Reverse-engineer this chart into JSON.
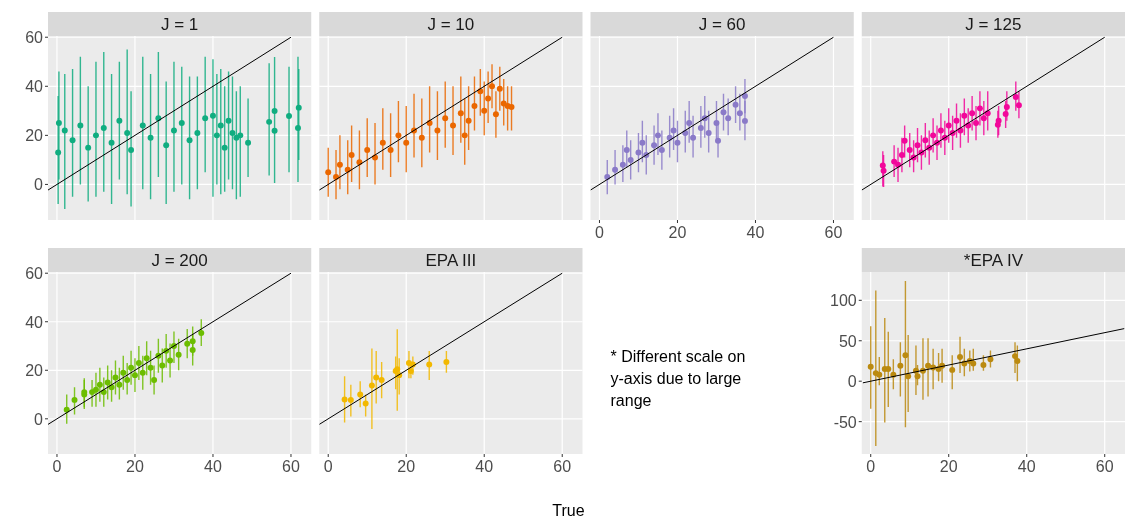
{
  "chart_data": [
    {
      "type": "scatter",
      "title": "J = 1",
      "xlim": [
        -2.3,
        65.2
      ],
      "ylim": [
        -14.5,
        60.5
      ],
      "xticks": [
        0,
        20,
        40,
        60
      ],
      "yticks": [
        0,
        20,
        40,
        60
      ],
      "grid": true,
      "tick_labels": "y",
      "series": [
        {
          "type": "scatter",
          "marker": "circle",
          "color": "#10ad80",
          "x": [
            0.3,
            0.5,
            2,
            4,
            6,
            8,
            10,
            12,
            14,
            16,
            18,
            19,
            22,
            24,
            26,
            28,
            30,
            32,
            34,
            36,
            38,
            40,
            41,
            42,
            43,
            44,
            45,
            46,
            47,
            49,
            54.4,
            55.8,
            55.8,
            59.5,
            62,
            61.8
          ],
          "values": [
            13,
            25,
            22,
            18,
            24,
            15,
            20,
            23,
            17,
            26,
            21,
            14,
            24,
            19,
            27,
            16,
            22,
            25,
            18,
            21,
            27,
            28,
            20,
            24,
            15,
            26,
            21,
            19,
            20,
            17,
            25.5,
            29.9,
            21.9,
            27.9,
            31.3,
            23
          ],
          "errors": [
            [
              -8,
              36
            ],
            [
              2,
              46
            ],
            [
              -10,
              45
            ],
            [
              -5,
              47
            ],
            [
              0,
              52
            ],
            [
              -7,
              40
            ],
            [
              -5,
              50
            ],
            [
              -3,
              54
            ],
            [
              -8,
              45
            ],
            [
              2,
              50
            ],
            [
              -4,
              55
            ],
            [
              -9,
              38
            ],
            [
              -2,
              52
            ],
            [
              -6,
              45
            ],
            [
              3,
              54
            ],
            [
              -8,
              42
            ],
            [
              -3,
              50
            ],
            [
              0,
              48
            ],
            [
              -6,
              44
            ],
            [
              -2,
              44
            ],
            [
              5,
              52
            ],
            [
              -5,
              51
            ],
            [
              0,
              45
            ],
            [
              -4,
              47
            ],
            [
              -3,
              40
            ],
            [
              2,
              46
            ],
            [
              -2,
              44
            ],
            [
              -6,
              38
            ],
            [
              -5,
              40
            ],
            [
              3,
              35
            ],
            [
              3.6,
              49.4
            ],
            [
              0.6,
              51.9
            ],
            null,
            [
              5,
              48
            ],
            [
              10,
              47
            ],
            [
              1,
              52
            ]
          ]
        },
        {
          "type": "line",
          "color": "#000000",
          "x": [
            -2.3,
            60
          ],
          "values": [
            -2.3,
            60
          ]
        }
      ]
    },
    {
      "type": "scatter",
      "title": "J = 10",
      "xlim": [
        -2.3,
        65.2
      ],
      "ylim": [
        -14.5,
        60.5
      ],
      "xticks": [
        0,
        20,
        40,
        60
      ],
      "yticks": [
        0,
        20,
        40,
        60
      ],
      "grid": true,
      "tick_labels": false,
      "series": [
        {
          "type": "scatter",
          "marker": "circle",
          "color": "#ea6700",
          "x": [
            0,
            2,
            3,
            5,
            6,
            8,
            10,
            12,
            14,
            16,
            18,
            20,
            22,
            24,
            26,
            28,
            30,
            32,
            34,
            35,
            36,
            37.5,
            39,
            40,
            41,
            42,
            43,
            44,
            45,
            46,
            47
          ],
          "values": [
            5,
            3,
            8,
            6,
            12,
            9,
            14,
            11,
            17,
            14,
            20,
            17,
            22,
            19,
            25,
            22,
            27,
            24,
            29,
            20,
            26,
            32,
            38,
            30,
            35,
            40,
            28.6,
            39,
            33,
            32,
            31.6
          ],
          "errors": [
            [
              -5,
              15
            ],
            [
              -6,
              14
            ],
            [
              -2,
              20
            ],
            [
              -4,
              18
            ],
            [
              1,
              24
            ],
            [
              -2,
              22
            ],
            [
              3,
              27
            ],
            [
              0,
              25
            ],
            [
              6,
              31
            ],
            [
              3,
              29
            ],
            [
              9,
              34
            ],
            [
              5,
              32
            ],
            [
              11,
              37
            ],
            [
              7,
              35
            ],
            [
              13,
              40
            ],
            [
              10,
              38
            ],
            [
              15,
              42
            ],
            [
              12,
              40
            ],
            [
              17,
              44
            ],
            [
              8,
              35
            ],
            [
              14,
              40
            ],
            [
              22,
              44
            ],
            [
              28,
              47
            ],
            [
              20,
              42
            ],
            [
              25,
              46
            ],
            [
              31,
              49
            ],
            [
              19,
              38
            ],
            [
              30,
              48
            ],
            [
              24,
              43
            ],
            [
              22,
              40
            ],
            [
              22,
              40
            ]
          ]
        },
        {
          "type": "line",
          "color": "#000000",
          "x": [
            -2.3,
            60
          ],
          "values": [
            -2.3,
            60
          ]
        }
      ]
    },
    {
      "type": "scatter",
      "title": "J = 60",
      "xlim": [
        -2.3,
        65.2
      ],
      "ylim": [
        -14.5,
        60.5
      ],
      "xticks": [
        0,
        20,
        40,
        60
      ],
      "yticks": [
        0,
        20,
        40,
        60
      ],
      "grid": true,
      "tick_labels": "x",
      "series": [
        {
          "type": "scatter",
          "marker": "circle",
          "color": "#8a7ac8",
          "x": [
            2,
            4,
            6,
            7,
            8,
            10,
            11,
            12,
            14,
            15,
            16,
            18,
            19,
            20,
            22,
            23,
            24,
            26,
            27,
            28,
            30,
            30.4,
            31.8,
            33,
            34.9,
            36,
            37.3,
            37.3
          ],
          "values": [
            3,
            6,
            8,
            14,
            10,
            13,
            17,
            12,
            16,
            20,
            14,
            19,
            22,
            17,
            21,
            25,
            19,
            23,
            27,
            21,
            25,
            17.8,
            29.4,
            27,
            32.5,
            29,
            36,
            25.9
          ],
          "errors": [
            [
              -4,
              10
            ],
            [
              0,
              14
            ],
            [
              1,
              16
            ],
            [
              7,
              22
            ],
            [
              2,
              18
            ],
            [
              5,
              21
            ],
            [
              9,
              26
            ],
            [
              4,
              20
            ],
            [
              8,
              24
            ],
            [
              12,
              29
            ],
            [
              6,
              22
            ],
            [
              11,
              28
            ],
            [
              14,
              31
            ],
            [
              9,
              26
            ],
            [
              13,
              30
            ],
            [
              17,
              34
            ],
            [
              11,
              28
            ],
            [
              15,
              32
            ],
            [
              19,
              36
            ],
            [
              13,
              30
            ],
            [
              17,
              34
            ],
            [
              11,
              25
            ],
            [
              22,
              37
            ],
            [
              20,
              35
            ],
            [
              25,
              40
            ],
            [
              22,
              37
            ],
            [
              29,
              43
            ],
            [
              18,
              34
            ]
          ]
        },
        {
          "type": "line",
          "color": "#000000",
          "x": [
            -2.3,
            60
          ],
          "values": [
            -2.3,
            60
          ]
        }
      ]
    },
    {
      "type": "scatter",
      "title": "J = 125",
      "xlim": [
        -2.3,
        65.2
      ],
      "ylim": [
        -14.5,
        60.5
      ],
      "xticks": [
        0,
        20,
        40,
        60
      ],
      "yticks": [
        0,
        20,
        40,
        60
      ],
      "grid": true,
      "tick_labels": false,
      "series": [
        {
          "type": "scatter",
          "marker": "circle",
          "color": "#f2079a",
          "x": [
            3.1,
            3.3,
            6,
            7,
            8,
            8.7,
            10,
            11,
            12,
            13,
            14,
            15,
            16,
            17,
            18,
            19,
            20,
            21,
            22,
            23,
            24,
            25,
            26,
            27,
            28,
            29,
            30,
            32.6,
            32.8,
            34.6,
            34.9,
            37.2,
            38
          ],
          "values": [
            7.7,
            5.6,
            9.3,
            8,
            12,
            17.8,
            14,
            11,
            16,
            13,
            18,
            15,
            20,
            17,
            22,
            19,
            24,
            21,
            26,
            22,
            28,
            24,
            29,
            25,
            31,
            27,
            29,
            24.3,
            26,
            28.7,
            31.6,
            35.6,
            32.3
          ],
          "errors": [
            [
              -0.8,
              13.5
            ],
            [
              -1,
              12
            ],
            [
              3,
              16
            ],
            [
              1,
              15
            ],
            [
              5,
              19
            ],
            [
              11,
              24
            ],
            [
              7,
              21
            ],
            [
              5,
              18
            ],
            [
              9,
              23
            ],
            [
              6,
              20
            ],
            [
              11,
              25
            ],
            [
              8,
              22
            ],
            [
              13,
              27
            ],
            [
              10,
              24
            ],
            [
              15,
              29
            ],
            [
              12,
              26
            ],
            [
              17,
              31
            ],
            [
              14,
              28
            ],
            [
              19,
              33
            ],
            [
              15,
              29
            ],
            [
              20,
              35
            ],
            [
              17,
              31
            ],
            [
              22,
              36
            ],
            [
              18,
              32
            ],
            [
              24,
              38
            ],
            [
              20,
              34
            ],
            [
              22,
              38
            ],
            [
              19,
              30
            ],
            [
              20,
              32
            ],
            [
              23,
              34
            ],
            [
              26,
              38
            ],
            [
              30,
              42
            ],
            [
              27,
              38
            ]
          ]
        },
        {
          "type": "line",
          "color": "#000000",
          "x": [
            -2.3,
            60
          ],
          "values": [
            -2.3,
            60
          ]
        }
      ]
    },
    {
      "type": "scatter",
      "title": "J = 200",
      "xlim": [
        -2.3,
        65.2
      ],
      "ylim": [
        -14.5,
        60.5
      ],
      "xticks": [
        0,
        20,
        40,
        60
      ],
      "yticks": [
        0,
        20,
        40,
        60
      ],
      "grid": true,
      "series": [
        {
          "type": "scatter",
          "marker": "circle",
          "color": "#6cbd00",
          "x": [
            2.5,
            4.5,
            7,
            7,
            9,
            10,
            11,
            12,
            13,
            14,
            15,
            16,
            17,
            18,
            19,
            20,
            21,
            22,
            23,
            24,
            24.9,
            26,
            27,
            28,
            29,
            30,
            31.2,
            33.4,
            34.8,
            34.8,
            37
          ],
          "values": [
            3.7,
            7.8,
            11,
            10,
            11,
            12,
            14,
            11,
            15,
            13,
            17,
            14,
            19,
            16,
            21,
            18,
            23,
            19,
            25,
            21,
            16,
            26,
            22,
            28,
            24,
            30,
            26.4,
            30.9,
            32,
            28.4,
            35.4
          ],
          "errors": [
            [
              -2,
              10
            ],
            [
              1.8,
              13
            ],
            [
              4.8,
              16.7
            ],
            [
              4,
              16
            ],
            [
              5,
              16
            ],
            [
              5,
              19
            ],
            [
              7,
              21
            ],
            [
              5,
              17
            ],
            [
              8,
              22
            ],
            [
              7,
              20
            ],
            [
              10,
              24
            ],
            [
              8,
              21
            ],
            [
              12,
              26
            ],
            [
              10,
              23
            ],
            [
              14,
              28
            ],
            [
              11,
              25
            ],
            [
              16,
              30
            ],
            [
              12,
              26
            ],
            [
              18,
              32
            ],
            [
              14,
              28
            ],
            [
              10,
              22
            ],
            [
              19,
              33
            ],
            [
              15,
              29
            ],
            [
              21,
              35
            ],
            [
              17,
              31
            ],
            [
              23,
              36
            ],
            [
              20,
              33
            ],
            [
              25,
              37
            ],
            [
              26,
              38
            ],
            [
              22,
              35
            ],
            [
              30,
              41
            ]
          ]
        },
        {
          "type": "line",
          "color": "#000000",
          "x": [
            -2.3,
            60
          ],
          "values": [
            -2.3,
            60
          ]
        }
      ]
    },
    {
      "type": "scatter",
      "title": "EPA III",
      "xlabel": "True",
      "xlim": [
        -2.3,
        65.2
      ],
      "ylim": [
        -14.5,
        60.5
      ],
      "xticks": [
        0,
        20,
        40,
        60
      ],
      "yticks": [
        0,
        20,
        40,
        60
      ],
      "grid": true,
      "tick_labels": "x",
      "series": [
        {
          "type": "scatter",
          "marker": "circle",
          "color": "#f2b800",
          "x": [
            4.2,
            5.8,
            8.2,
            9.6,
            11.2,
            12.3,
            13.7,
            17.3,
            17.7,
            18.2,
            20.7,
            21.2,
            21.7,
            25.9,
            30.3
          ],
          "values": [
            8,
            7.8,
            10,
            6.3,
            13.7,
            17,
            16,
            19.7,
            20.4,
            18,
            23,
            19.7,
            22.4,
            22.4,
            23.4
          ],
          "errors": [
            [
              -1.5,
              17.5
            ],
            [
              1,
              14
            ],
            [
              4.8,
              15.5
            ],
            [
              1,
              10
            ],
            [
              -4.2,
              29
            ],
            [
              6.3,
              27.9
            ],
            [
              8.5,
              23.4
            ],
            [
              12.2,
              25.7
            ],
            [
              3.3,
              36.9
            ],
            [
              10,
              25
            ],
            [
              16.7,
              27.9
            ],
            [
              16.7,
              21.9
            ],
            [
              18.2,
              25.7
            ],
            [
              16,
              27.9
            ],
            [
              19,
              27.9
            ]
          ]
        },
        {
          "type": "line",
          "color": "#000000",
          "x": [
            -2.3,
            60
          ],
          "values": [
            -2.3,
            60
          ]
        }
      ]
    },
    {
      "type": "other",
      "annotations": [
        "* Different scale on y-axis due to large range"
      ]
    },
    {
      "type": "scatter",
      "title": "*EPA IV",
      "xlim": [
        -2.3,
        65.2
      ],
      "ylim": [
        -90,
        135
      ],
      "xticks": [
        0,
        20,
        40,
        60
      ],
      "yticks": [
        -50,
        0,
        50,
        100
      ],
      "grid": true,
      "series": [
        {
          "type": "scatter",
          "marker": "circle",
          "color": "#bb8a10",
          "x": [
            0,
            1.3,
            2.2,
            3.6,
            4.5,
            5.8,
            7.6,
            8.9,
            9.6,
            11.6,
            12,
            13.4,
            14.7,
            16,
            17.4,
            18.3,
            20.9,
            22.9,
            24,
            25.4,
            26.3,
            28.9,
            30.7,
            37,
            37.6
          ],
          "values": [
            18,
            10,
            8,
            15,
            15,
            8,
            19,
            32,
            6,
            13,
            6,
            13,
            19,
            17,
            15,
            19,
            14,
            30,
            22,
            25,
            22,
            20,
            27,
            31,
            25
          ],
          "errors": [
            [
              -34,
              68
            ],
            [
              -80,
              112
            ],
            [
              -5,
              30
            ],
            [
              -51,
              78
            ],
            [
              -32,
              61
            ],
            [
              -10,
              27
            ],
            [
              -19,
              48
            ],
            [
              -57,
              124
            ],
            [
              -38,
              57
            ],
            [
              -17,
              44
            ],
            [
              -5,
              20
            ],
            [
              -23,
              53
            ],
            [
              -19,
              53
            ],
            [
              -10,
              40
            ],
            [
              0,
              35
            ],
            [
              -2,
              40
            ],
            [
              -10,
              32
            ],
            [
              10,
              55
            ],
            [
              6,
              40
            ],
            [
              12,
              38
            ],
            [
              13,
              40
            ],
            [
              13,
              32
            ],
            [
              17,
              38
            ],
            [
              10,
              48
            ],
            [
              0,
              44
            ]
          ]
        },
        {
          "type": "line",
          "color": "#000000",
          "x": [
            -2,
            65
          ],
          "values": [
            -2,
            65
          ]
        }
      ]
    }
  ]
}
